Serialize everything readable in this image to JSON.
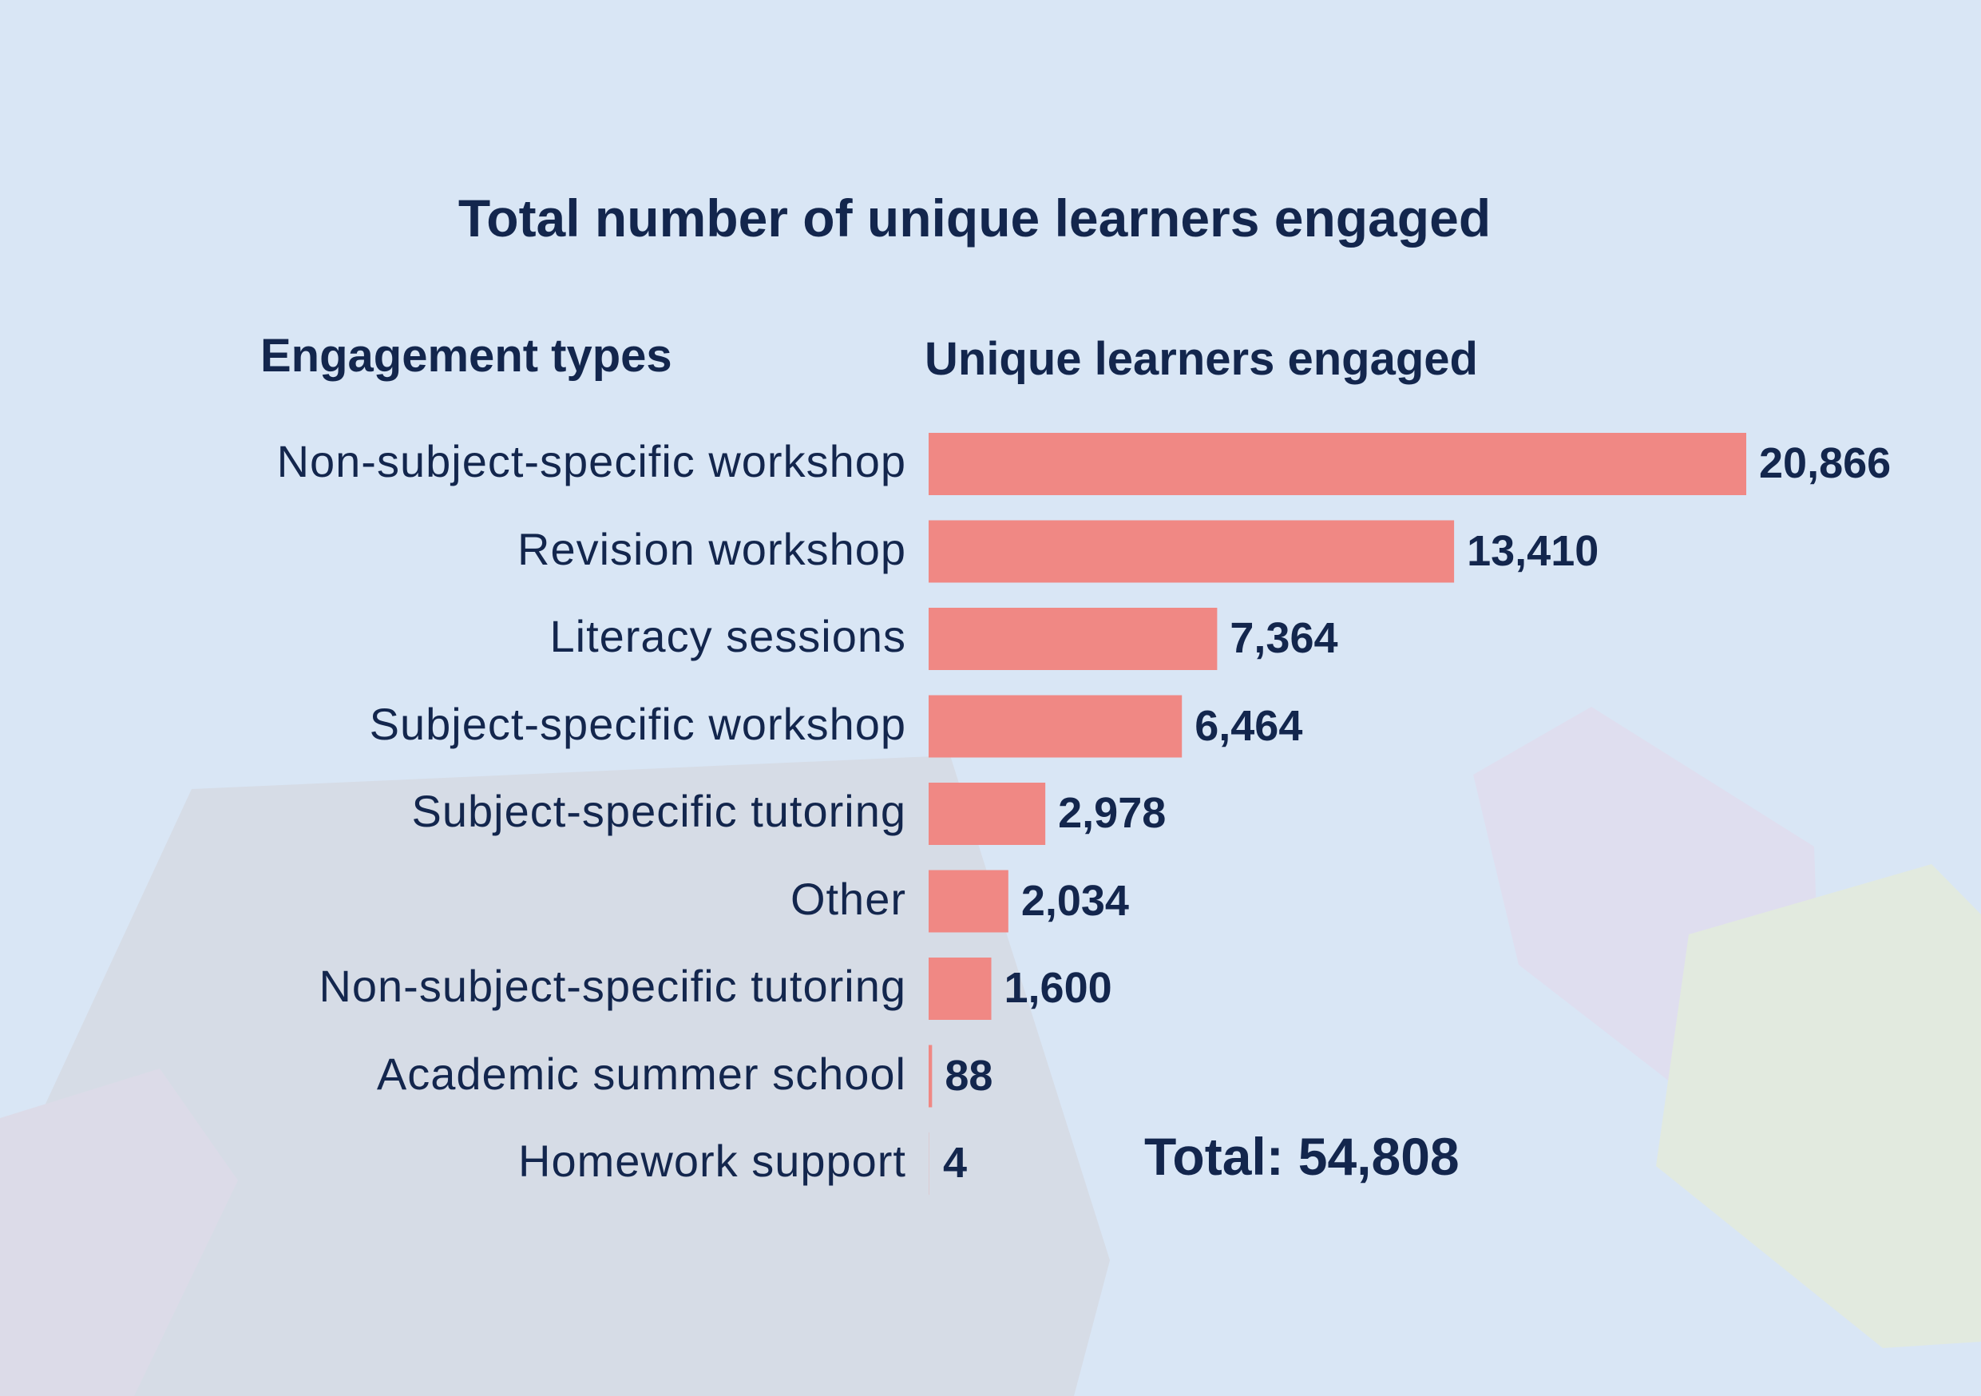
{
  "chart_data": {
    "type": "bar",
    "orientation": "horizontal",
    "title": "Total number of unique learners engaged",
    "category_header": "Engagement types",
    "value_header": "Unique learners engaged",
    "categories": [
      "Non-subject-specific workshop",
      "Revision workshop",
      "Literacy sessions",
      "Subject-specific workshop",
      "Subject-specific tutoring",
      "Other",
      "Non-subject-specific tutoring",
      "Academic summer school",
      "Homework support"
    ],
    "values": [
      20866,
      13410,
      7364,
      6464,
      2978,
      2034,
      1600,
      88,
      4
    ],
    "value_labels": [
      "20,866",
      "13,410",
      "7,364",
      "6,464",
      "2,978",
      "2,034",
      "1,600",
      "88",
      "4"
    ],
    "total_label": "Total:",
    "total_value": "54,808",
    "bar_color": "#f08884",
    "text_color": "#13264d",
    "background_color": "#d9e6f5",
    "grid": false,
    "legend": "none"
  }
}
